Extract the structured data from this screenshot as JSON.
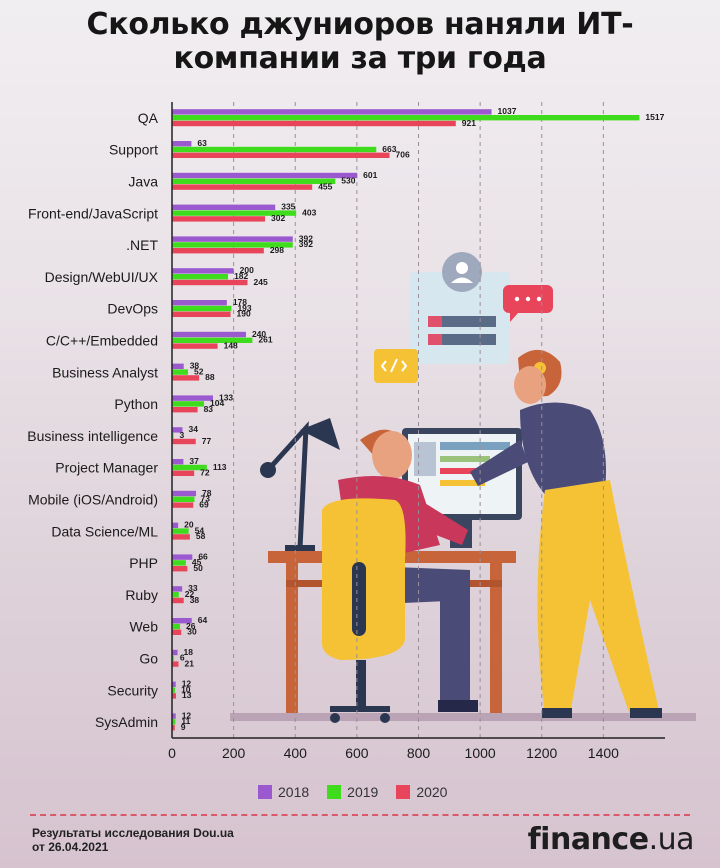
{
  "title_lines": [
    "Сколько джуниоров наняли ИТ-",
    "компании за три года"
  ],
  "chart_data": {
    "type": "bar",
    "orientation": "horizontal",
    "title": "Сколько джуниоров наняли ИТ-компании за три года",
    "categories": [
      "QA",
      "Support",
      "Java",
      "Front-end/JavaScript",
      ".NET",
      "Design/WebUI/UX",
      "DevOps",
      "C/C++/Embedded",
      "Business Analyst",
      "Python",
      "Business intelligence",
      "Project Manager",
      "Mobile (iOS/Android)",
      "Data Science/ML",
      "PHP",
      "Ruby",
      "Web",
      "Go",
      "Security",
      "SysAdmin"
    ],
    "series": [
      {
        "name": "2018",
        "color": "#9b59d0",
        "values": [
          1037,
          63,
          601,
          335,
          392,
          200,
          178,
          240,
          38,
          133,
          34,
          37,
          78,
          20,
          66,
          33,
          64,
          18,
          12,
          12
        ]
      },
      {
        "name": "2019",
        "color": "#3fdb1d",
        "values": [
          1517,
          663,
          530,
          403,
          392,
          182,
          193,
          261,
          52,
          104,
          3,
          113,
          73,
          54,
          45,
          22,
          26,
          6,
          10,
          11
        ]
      },
      {
        "name": "2020",
        "color": "#e8455a",
        "values": [
          921,
          706,
          455,
          302,
          298,
          245,
          190,
          148,
          88,
          83,
          77,
          72,
          69,
          58,
          50,
          38,
          30,
          21,
          13,
          9
        ]
      }
    ],
    "xticks": [
      0,
      200,
      400,
      600,
      800,
      1000,
      1200,
      1400
    ],
    "xlim": [
      0,
      1600
    ],
    "grid": "vertical dashed",
    "legend_position": "bottom-center"
  },
  "footer": {
    "source_line1": "Результаты исследования Dou.ua",
    "source_line2": "от 26.04.2021",
    "brand_main": "finance",
    "brand_suffix": ".ua"
  }
}
